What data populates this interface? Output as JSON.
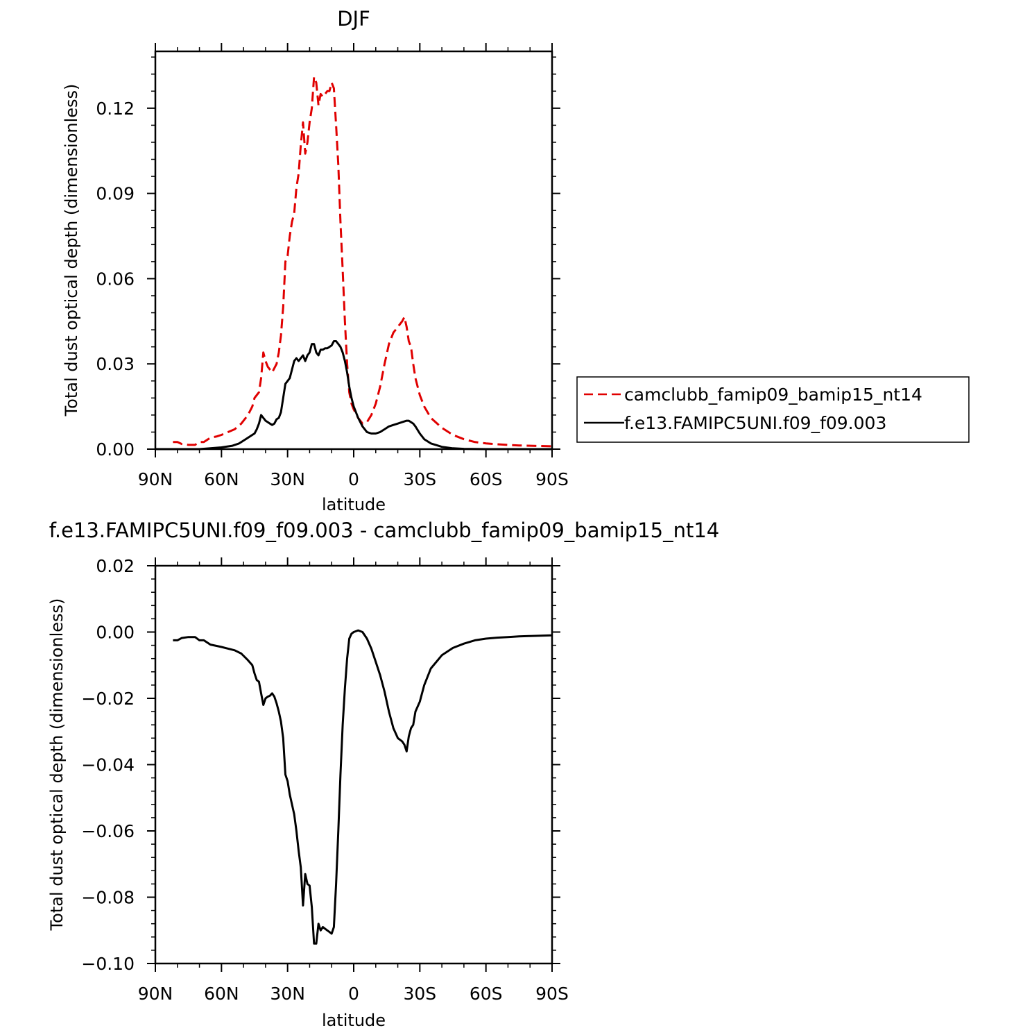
{
  "chart_data": [
    {
      "type": "line",
      "title": "DJF",
      "xlabel": "latitude",
      "ylabel": "Total dust optical depth (dimensionless)",
      "xlim": [
        90,
        -90
      ],
      "ylim": [
        0,
        0.14
      ],
      "xticks": [
        90,
        60,
        30,
        0,
        -30,
        -60,
        -90
      ],
      "xtick_labels": [
        "90N",
        "60N",
        "30N",
        "0",
        "30S",
        "60S",
        "90S"
      ],
      "yticks": [
        0,
        0.03,
        0.06,
        0.09,
        0.12
      ],
      "ytick_labels": [
        "0.00",
        "0.03",
        "0.06",
        "0.09",
        "0.12"
      ],
      "legend": {
        "placement": "right"
      },
      "series": [
        {
          "name": "camclubb_famip09_bamip15_nt14",
          "color": "#e00000",
          "dash": "dashed",
          "x": [
            82,
            80,
            78,
            75,
            72,
            70,
            68,
            65,
            62,
            60,
            57,
            54,
            51,
            48,
            46,
            45,
            43,
            42,
            41,
            40,
            39,
            38,
            37,
            35,
            34,
            33,
            32,
            31,
            30,
            29,
            28,
            27,
            26,
            25,
            24,
            23,
            22,
            21,
            20,
            19,
            18,
            17,
            16,
            15,
            14,
            13,
            12,
            11,
            10,
            9,
            8,
            7,
            6,
            5,
            4,
            3,
            2,
            1,
            0,
            -2,
            -4,
            -6,
            -8,
            -10,
            -12,
            -14,
            -16,
            -18,
            -20,
            -22,
            -23,
            -24,
            -25,
            -26,
            -27,
            -28,
            -30,
            -32,
            -35,
            -40,
            -45,
            -50,
            -55,
            -60,
            -65,
            -70,
            -75,
            -80,
            -85,
            -90
          ],
          "y": [
            0.0025,
            0.0025,
            0.0018,
            0.0015,
            0.0015,
            0.0025,
            0.0025,
            0.004,
            0.0045,
            0.005,
            0.006,
            0.007,
            0.009,
            0.012,
            0.015,
            0.018,
            0.02,
            0.025,
            0.034,
            0.031,
            0.029,
            0.028,
            0.027,
            0.03,
            0.034,
            0.04,
            0.05,
            0.066,
            0.068,
            0.075,
            0.08,
            0.083,
            0.092,
            0.097,
            0.107,
            0.115,
            0.104,
            0.108,
            0.115,
            0.12,
            0.131,
            0.129,
            0.121,
            0.125,
            0.124,
            0.125,
            0.126,
            0.126,
            0.129,
            0.127,
            0.114,
            0.1,
            0.08,
            0.063,
            0.045,
            0.03,
            0.02,
            0.016,
            0.014,
            0.011,
            0.009,
            0.0095,
            0.012,
            0.016,
            0.022,
            0.03,
            0.037,
            0.041,
            0.043,
            0.045,
            0.0465,
            0.043,
            0.038,
            0.036,
            0.03,
            0.025,
            0.019,
            0.015,
            0.011,
            0.0075,
            0.005,
            0.0035,
            0.0025,
            0.002,
            0.0017,
            0.0015,
            0.0013,
            0.0012,
            0.0011,
            0.001
          ]
        },
        {
          "name": "f.e13.FAMIPC5UNI.f09_f09.003",
          "color": "#000000",
          "dash": "solid",
          "x": [
            90,
            70,
            65,
            60,
            55,
            52,
            50,
            48,
            46,
            45,
            44,
            43,
            42,
            41,
            40,
            39,
            38,
            37,
            36,
            35,
            34,
            33,
            32,
            31,
            30,
            29,
            28,
            27,
            26,
            25,
            24,
            23,
            22,
            21,
            20,
            19,
            18,
            17,
            16,
            15,
            14,
            13,
            12,
            11,
            10,
            9,
            8,
            7,
            6,
            5,
            4,
            3,
            2,
            1,
            0,
            -2,
            -4,
            -6,
            -8,
            -10,
            -12,
            -14,
            -16,
            -18,
            -20,
            -22,
            -24,
            -25,
            -26,
            -27,
            -28,
            -30,
            -32,
            -35,
            -40,
            -45,
            -50,
            -60,
            -70,
            -80,
            -90
          ],
          "y": [
            0.0,
            0.0,
            0.0003,
            0.0006,
            0.0012,
            0.002,
            0.003,
            0.004,
            0.005,
            0.0055,
            0.007,
            0.009,
            0.012,
            0.011,
            0.01,
            0.0095,
            0.009,
            0.0085,
            0.009,
            0.0105,
            0.011,
            0.013,
            0.018,
            0.023,
            0.024,
            0.025,
            0.028,
            0.031,
            0.032,
            0.031,
            0.032,
            0.033,
            0.031,
            0.033,
            0.034,
            0.037,
            0.037,
            0.034,
            0.033,
            0.035,
            0.035,
            0.0355,
            0.0355,
            0.036,
            0.0365,
            0.038,
            0.038,
            0.037,
            0.036,
            0.034,
            0.031,
            0.027,
            0.022,
            0.018,
            0.015,
            0.011,
            0.008,
            0.006,
            0.0055,
            0.0055,
            0.006,
            0.007,
            0.008,
            0.0085,
            0.009,
            0.0095,
            0.01,
            0.01,
            0.0095,
            0.009,
            0.008,
            0.0055,
            0.0035,
            0.002,
            0.0008,
            0.0003,
            0.0001,
            0.0,
            0.0,
            0.0,
            0.0
          ]
        }
      ]
    },
    {
      "type": "line",
      "title": "f.e13.FAMIPC5UNI.f09_f09.003 - camclubb_famip09_bamip15_nt14",
      "xlabel": "latitude",
      "ylabel": "Total dust optical depth (dimensionless)",
      "xlim": [
        90,
        -90
      ],
      "ylim": [
        -0.1,
        0.02
      ],
      "xticks": [
        90,
        60,
        30,
        0,
        -30,
        -60,
        -90
      ],
      "xtick_labels": [
        "90N",
        "60N",
        "30N",
        "0",
        "30S",
        "60S",
        "90S"
      ],
      "yticks": [
        0.02,
        0.0,
        -0.02,
        -0.04,
        -0.06,
        -0.08,
        -0.1
      ],
      "ytick_labels": [
        "0.02",
        "0.00",
        "−0.02",
        "−0.04",
        "−0.06",
        "−0.08",
        "−0.10"
      ],
      "series": [
        {
          "color": "#000000",
          "dash": "solid",
          "x": [
            82,
            80,
            78,
            75,
            72,
            70,
            68,
            65,
            62,
            60,
            57,
            54,
            51,
            48,
            46,
            45,
            44,
            43,
            42,
            41,
            40,
            39,
            38,
            37,
            36,
            35,
            34,
            33,
            32,
            31,
            30,
            29,
            28,
            27,
            26,
            25,
            24,
            23,
            22,
            21,
            20,
            19,
            18,
            17,
            16,
            15,
            14,
            13,
            12,
            11,
            10,
            9,
            8,
            7,
            6,
            5,
            4,
            3,
            2,
            1,
            0,
            -2,
            -4,
            -6,
            -8,
            -10,
            -12,
            -14,
            -16,
            -18,
            -20,
            -22,
            -23,
            -24,
            -25,
            -26,
            -27,
            -28,
            -30,
            -32,
            -35,
            -40,
            -45,
            -50,
            -55,
            -60,
            -65,
            -70,
            -75,
            -80,
            -85,
            -90
          ],
          "y": [
            -0.0025,
            -0.0025,
            -0.0018,
            -0.0015,
            -0.0015,
            -0.0025,
            -0.0025,
            -0.0038,
            -0.0042,
            -0.0045,
            -0.005,
            -0.0055,
            -0.0065,
            -0.0085,
            -0.01,
            -0.0125,
            -0.0145,
            -0.015,
            -0.0185,
            -0.022,
            -0.02,
            -0.0195,
            -0.0192,
            -0.0185,
            -0.0195,
            -0.0215,
            -0.024,
            -0.027,
            -0.032,
            -0.043,
            -0.045,
            -0.049,
            -0.052,
            -0.055,
            -0.06,
            -0.066,
            -0.071,
            -0.0825,
            -0.073,
            -0.076,
            -0.0765,
            -0.083,
            -0.094,
            -0.094,
            -0.088,
            -0.09,
            -0.089,
            -0.0895,
            -0.09,
            -0.0905,
            -0.091,
            -0.089,
            -0.076,
            -0.06,
            -0.043,
            -0.028,
            -0.017,
            -0.008,
            -0.002,
            -0.0005,
            0.0,
            0.0005,
            0.0,
            -0.002,
            -0.005,
            -0.009,
            -0.013,
            -0.018,
            -0.024,
            -0.029,
            -0.032,
            -0.033,
            -0.034,
            -0.036,
            -0.0315,
            -0.029,
            -0.028,
            -0.024,
            -0.021,
            -0.016,
            -0.011,
            -0.007,
            -0.0048,
            -0.0035,
            -0.0025,
            -0.002,
            -0.0017,
            -0.0015,
            -0.0013,
            -0.0012,
            -0.0011,
            -0.001
          ]
        }
      ]
    }
  ]
}
